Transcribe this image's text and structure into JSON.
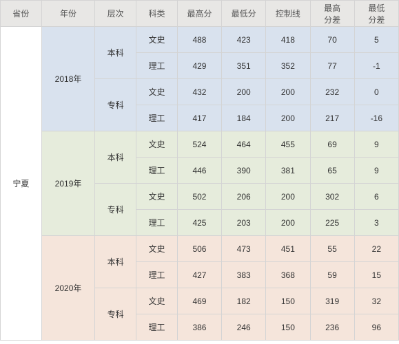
{
  "headers": {
    "province": "省份",
    "year": "年份",
    "level": "层次",
    "subject": "科类",
    "high_score": "最高分",
    "low_score": "最低分",
    "control_line": "控制线",
    "high_diff": "最高\n分差",
    "low_diff": "最低\n分差"
  },
  "province_name": "宁夏",
  "year_colors": {
    "2018": "#d9e2ee",
    "2019": "#e6ecdc",
    "2020": "#f5e5db"
  },
  "years": [
    {
      "label": "2018年",
      "bg": "#d9e2ee",
      "levels": [
        {
          "label": "本科",
          "rows": [
            {
              "subject": "文史",
              "high": "488",
              "low": "423",
              "ctrl": "418",
              "hd": "70",
              "ld": "5"
            },
            {
              "subject": "理工",
              "high": "429",
              "low": "351",
              "ctrl": "352",
              "hd": "77",
              "ld": "-1"
            }
          ]
        },
        {
          "label": "专科",
          "rows": [
            {
              "subject": "文史",
              "high": "432",
              "low": "200",
              "ctrl": "200",
              "hd": "232",
              "ld": "0"
            },
            {
              "subject": "理工",
              "high": "417",
              "low": "184",
              "ctrl": "200",
              "hd": "217",
              "ld": "-16"
            }
          ]
        }
      ]
    },
    {
      "label": "2019年",
      "bg": "#e6ecdc",
      "levels": [
        {
          "label": "本科",
          "rows": [
            {
              "subject": "文史",
              "high": "524",
              "low": "464",
              "ctrl": "455",
              "hd": "69",
              "ld": "9"
            },
            {
              "subject": "理工",
              "high": "446",
              "low": "390",
              "ctrl": "381",
              "hd": "65",
              "ld": "9"
            }
          ]
        },
        {
          "label": "专科",
          "rows": [
            {
              "subject": "文史",
              "high": "502",
              "low": "206",
              "ctrl": "200",
              "hd": "302",
              "ld": "6"
            },
            {
              "subject": "理工",
              "high": "425",
              "low": "203",
              "ctrl": "200",
              "hd": "225",
              "ld": "3"
            }
          ]
        }
      ]
    },
    {
      "label": "2020年",
      "bg": "#f5e5db",
      "levels": [
        {
          "label": "本科",
          "rows": [
            {
              "subject": "文史",
              "high": "506",
              "low": "473",
              "ctrl": "451",
              "hd": "55",
              "ld": "22"
            },
            {
              "subject": "理工",
              "high": "427",
              "low": "383",
              "ctrl": "368",
              "hd": "59",
              "ld": "15"
            }
          ]
        },
        {
          "label": "专科",
          "rows": [
            {
              "subject": "文史",
              "high": "469",
              "low": "182",
              "ctrl": "150",
              "hd": "319",
              "ld": "32"
            },
            {
              "subject": "理工",
              "high": "386",
              "low": "246",
              "ctrl": "150",
              "hd": "236",
              "ld": "96"
            }
          ]
        }
      ]
    }
  ]
}
